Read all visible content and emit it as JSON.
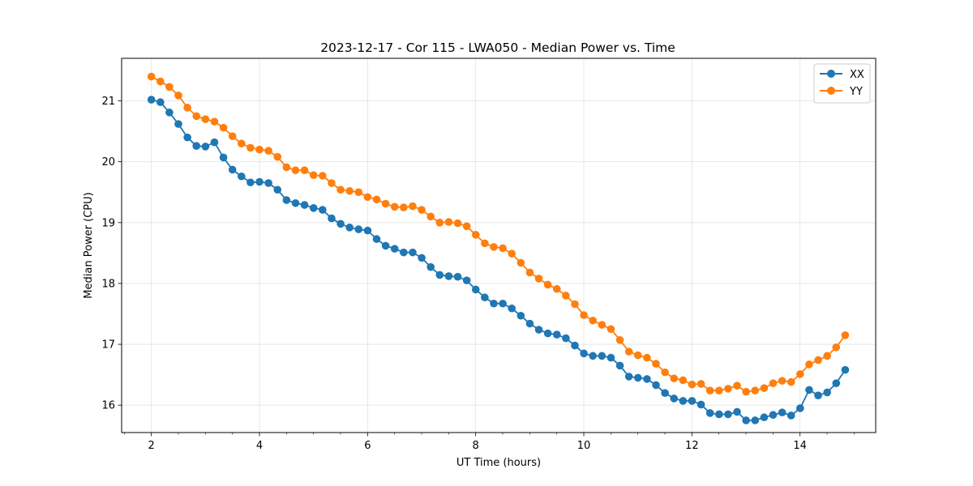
{
  "chart_data": {
    "type": "line",
    "title": "2023-12-17 - Cor 115 - LWA050 - Median Power vs. Time",
    "xlabel": "UT Time (hours)",
    "ylabel": "Median Power (CPU)",
    "xlim": [
      1.45,
      15.4
    ],
    "ylim": [
      15.55,
      21.7
    ],
    "xticks": [
      2,
      4,
      6,
      8,
      10,
      12,
      14
    ],
    "xtick_labels": [
      "2",
      "4",
      "6",
      "8",
      "10",
      "12",
      "14"
    ],
    "yticks": [
      16,
      17,
      18,
      19,
      20,
      21
    ],
    "ytick_labels": [
      "16",
      "17",
      "18",
      "19",
      "20",
      "21"
    ],
    "x_minor_step": 0.5,
    "grid": true,
    "legend_position": "top-right",
    "x_start": 2.0,
    "x_step": 0.1667,
    "series": [
      {
        "name": "XX",
        "color": "#1f77b4",
        "marker": "circle",
        "values": [
          21.02,
          20.98,
          20.81,
          20.62,
          20.4,
          20.26,
          20.25,
          20.32,
          20.07,
          19.87,
          19.76,
          19.66,
          19.67,
          19.65,
          19.54,
          19.37,
          19.32,
          19.29,
          19.24,
          19.21,
          19.07,
          18.98,
          18.92,
          18.89,
          18.87,
          18.73,
          18.62,
          18.57,
          18.51,
          18.51,
          18.42,
          18.27,
          18.14,
          18.12,
          18.11,
          18.05,
          17.9,
          17.77,
          17.67,
          17.67,
          17.59,
          17.47,
          17.34,
          17.24,
          17.18,
          17.16,
          17.1,
          16.98,
          16.85,
          16.81,
          16.81,
          16.78,
          16.65,
          16.47,
          16.45,
          16.43,
          16.33,
          16.2,
          16.11,
          16.07,
          16.07,
          16.01,
          15.87,
          15.85,
          15.85,
          15.89,
          15.75,
          15.75,
          15.8,
          15.84,
          15.88,
          15.83,
          15.95,
          16.25,
          16.16,
          16.21,
          16.36,
          16.58
        ]
      },
      {
        "name": "YY",
        "color": "#ff7f0e",
        "marker": "circle",
        "values": [
          21.4,
          21.32,
          21.23,
          21.09,
          20.89,
          20.75,
          20.7,
          20.66,
          20.56,
          20.42,
          20.3,
          20.23,
          20.2,
          20.18,
          20.08,
          19.91,
          19.86,
          19.86,
          19.78,
          19.77,
          19.65,
          19.54,
          19.52,
          19.5,
          19.42,
          19.38,
          19.31,
          19.26,
          19.25,
          19.27,
          19.21,
          19.1,
          19.0,
          19.01,
          18.99,
          18.94,
          18.8,
          18.66,
          18.6,
          18.58,
          18.49,
          18.34,
          18.18,
          18.08,
          17.98,
          17.91,
          17.8,
          17.66,
          17.48,
          17.39,
          17.32,
          17.25,
          17.07,
          16.88,
          16.82,
          16.78,
          16.68,
          16.54,
          16.44,
          16.41,
          16.34,
          16.35,
          16.24,
          16.24,
          16.27,
          16.32,
          16.22,
          16.24,
          16.28,
          16.36,
          16.4,
          16.38,
          16.51,
          16.67,
          16.74,
          16.81,
          16.95,
          17.15
        ]
      }
    ]
  }
}
